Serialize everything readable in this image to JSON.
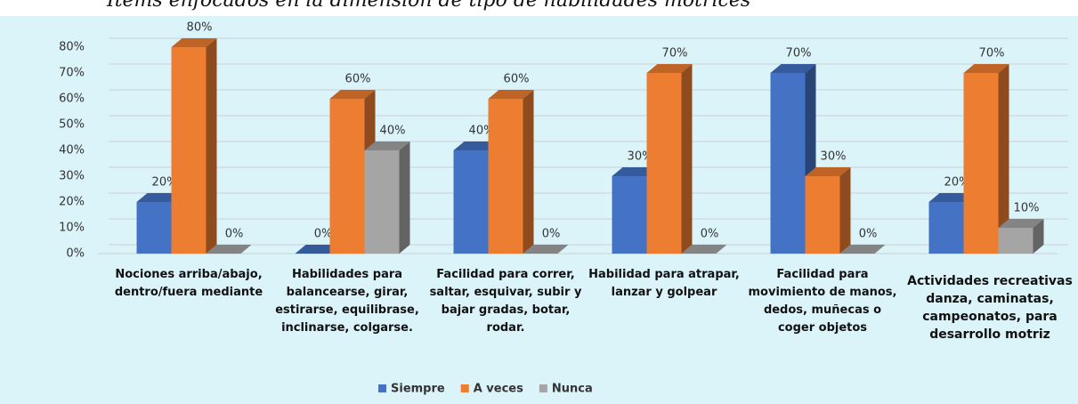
{
  "chart_data": {
    "type": "bar3d",
    "title": "Ítems enfocados en la dimensión de tipo de habilidades motrices",
    "categories": [
      "Nociones arriba/abajo, dentro/fuera mediante",
      "Habilidades para balancearse, girar, estirarse, equilibrase, inclinarse, colgarse.",
      "Facilidad para correr, saltar, esquivar, subir y bajar gradas, botar, rodar.",
      "Habilidad para atrapar, lanzar y golpear",
      "Facilidad para movimiento de manos, dedos, muñecas o coger objetos",
      "Actividades recreativas danza, caminatas, campeonatos, para desarrollo motriz"
    ],
    "series": [
      {
        "name": "Siempre",
        "color": "#4472c4",
        "values": [
          20,
          0,
          40,
          30,
          70,
          20
        ],
        "value_labels": [
          "20%",
          "0%",
          "40%",
          "30%",
          "70%",
          "20%"
        ]
      },
      {
        "name": "A veces",
        "color": "#ed7d31",
        "values": [
          80,
          60,
          60,
          70,
          30,
          70
        ],
        "value_labels": [
          "80%",
          "60%",
          "60%",
          "70%",
          "30%",
          "70%"
        ]
      },
      {
        "name": "Nunca",
        "color": "#a5a5a5",
        "values": [
          0,
          40,
          0,
          0,
          0,
          10
        ],
        "value_labels": [
          "0%",
          "40%",
          "0%",
          "0%",
          "0%",
          "10%"
        ]
      }
    ],
    "ylim": [
      0,
      80
    ],
    "yticks": [
      {
        "value": 0,
        "label": "0%"
      },
      {
        "value": 10,
        "label": "10%"
      },
      {
        "value": 20,
        "label": "20%"
      },
      {
        "value": 30,
        "label": "30%"
      },
      {
        "value": 40,
        "label": "40%"
      },
      {
        "value": 50,
        "label": "50%"
      },
      {
        "value": 60,
        "label": "60%"
      },
      {
        "value": 70,
        "label": "70%"
      },
      {
        "value": 80,
        "label": "80%"
      }
    ],
    "grid": true,
    "legend": "bottom"
  }
}
